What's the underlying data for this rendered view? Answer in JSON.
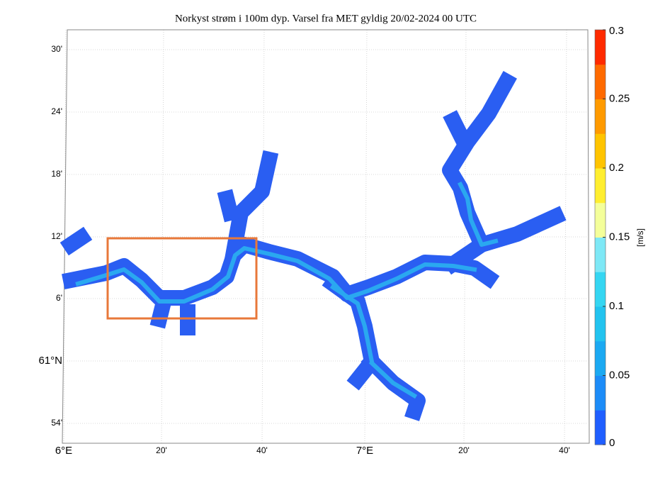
{
  "title": "Norkyst strøm i 100m dyp. Varsel fra MET gyldig 20/02-2024 00 UTC",
  "map": {
    "lat_ticks": [
      "30'",
      "24'",
      "18'",
      "12'",
      "6'",
      "61°N",
      "54'"
    ],
    "lon_ticks": [
      "6°E",
      "20'",
      "40'",
      "7°E",
      "20'",
      "40'"
    ]
  },
  "colorbar": {
    "label": "[m/s]",
    "lim": [
      0,
      0.3
    ],
    "ticks": [
      0,
      0.05,
      0.1,
      0.15,
      0.2,
      0.25,
      0.3
    ],
    "colors": [
      "#1f5eff",
      "#1c8cf8",
      "#1ba9f2",
      "#22c3ef",
      "#35d6f2",
      "#7ee8f6",
      "#f4ff9a",
      "#ffee30",
      "#ffc400",
      "#ff9a00",
      "#ff6a00",
      "#ff2a00"
    ]
  }
}
